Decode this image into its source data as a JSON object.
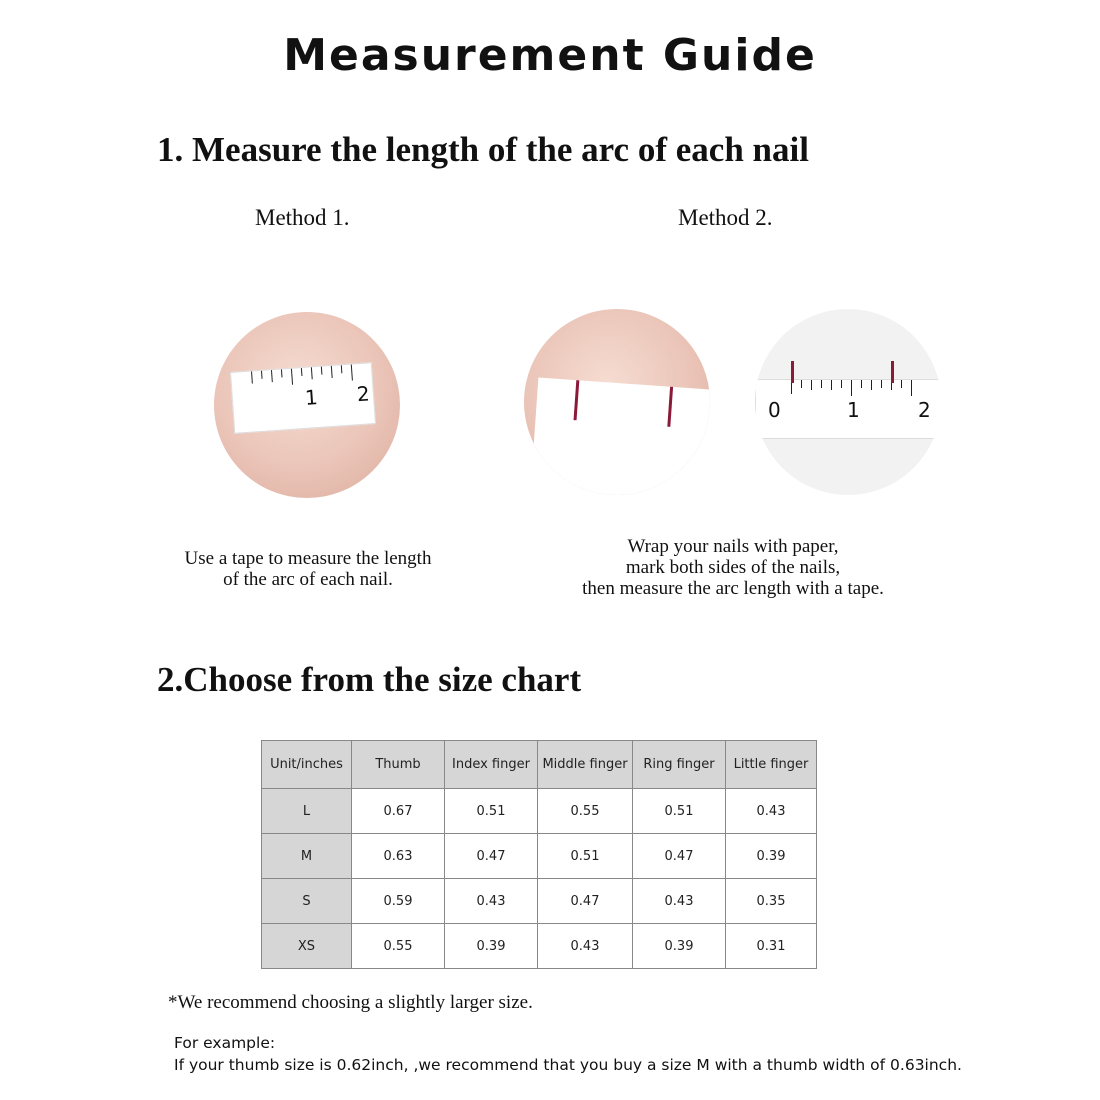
{
  "title": "Measurement Guide",
  "section1": {
    "heading": "1. Measure the length of the arc of each nail",
    "method1": {
      "label": "Method 1.",
      "caption": [
        "Use a tape to measure the length",
        "of the arc of each nail."
      ],
      "ruler_marks": [
        "1",
        "2"
      ]
    },
    "method2": {
      "label": "Method 2.",
      "caption": [
        "Wrap your nails with paper,",
        "mark both sides of the nails,",
        "then measure the arc length with a tape."
      ],
      "ruler_marks": [
        "0",
        "1",
        "2"
      ]
    }
  },
  "section2": {
    "heading": "2.Choose from the size chart",
    "table": {
      "headers": [
        "Unit/inches",
        "Thumb",
        "Index finger",
        "Middle finger",
        "Ring finger",
        "Little finger"
      ],
      "rows": [
        [
          "L",
          "0.67",
          "0.51",
          "0.55",
          "0.51",
          "0.43"
        ],
        [
          "M",
          "0.63",
          "0.47",
          "0.51",
          "0.47",
          "0.39"
        ],
        [
          "S",
          "0.59",
          "0.43",
          "0.47",
          "0.43",
          "0.35"
        ],
        [
          "XS",
          "0.55",
          "0.39",
          "0.43",
          "0.39",
          "0.31"
        ]
      ]
    },
    "note": "*We recommend choosing a slightly larger size.",
    "example_label": "For example:",
    "example_text": "If your thumb size is 0.62inch, ,we recommend that you buy a size M with a thumb width of 0.63inch."
  },
  "colors": {
    "header_bg": "#d6d6d6",
    "mark": "#8b1a3a"
  }
}
